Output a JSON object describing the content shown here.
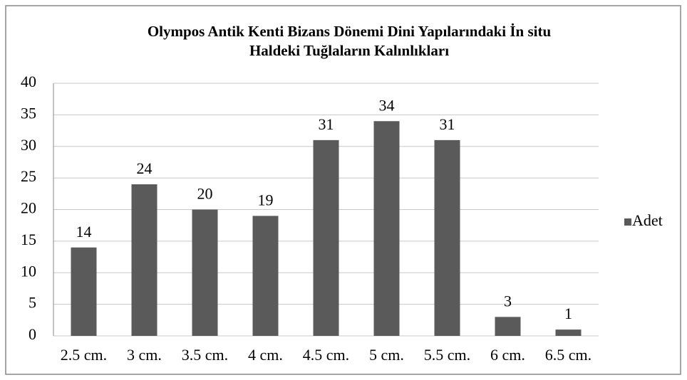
{
  "chart_data": {
    "type": "bar",
    "title": [
      "Olympos Antik Kenti Bizans Dönemi Dini Yapılarındaki İn situ",
      "Haldeki Tuğlaların Kalınlıkları"
    ],
    "categories": [
      "2.5 cm.",
      "3 cm.",
      "3.5 cm.",
      "4 cm.",
      "4.5 cm.",
      "5 cm.",
      "5.5 cm.",
      "6 cm.",
      "6.5 cm."
    ],
    "series": [
      {
        "name": "Adet",
        "color": "#5a5a5a",
        "values": [
          14,
          24,
          20,
          19,
          31,
          34,
          31,
          3,
          1
        ]
      }
    ],
    "ylim": [
      0,
      40
    ],
    "yticks": [
      0,
      5,
      10,
      15,
      20,
      25,
      30,
      35,
      40
    ],
    "grid": true,
    "legend": "right"
  }
}
